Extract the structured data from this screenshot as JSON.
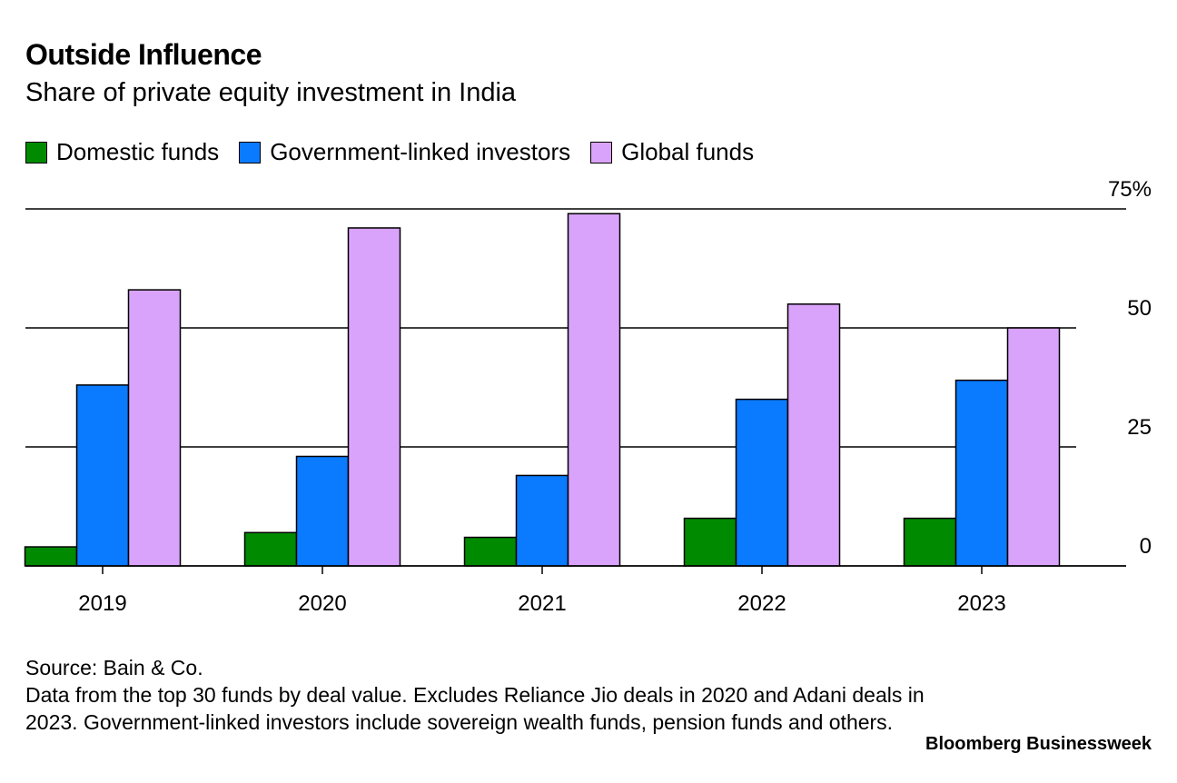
{
  "chart_data": {
    "type": "bar",
    "title": "Outside Influence",
    "subtitle": "Share of private equity investment in India",
    "categories": [
      "2019",
      "2020",
      "2021",
      "2022",
      "2023"
    ],
    "series": [
      {
        "name": "Domestic funds",
        "color": "#008a00",
        "values": [
          4,
          7,
          6,
          10,
          10
        ]
      },
      {
        "name": "Government-linked investors",
        "color": "#0a7aff",
        "values": [
          38,
          23,
          19,
          35,
          39
        ]
      },
      {
        "name": "Global funds",
        "color": "#d9a3fb",
        "values": [
          58,
          71,
          74,
          55,
          50
        ]
      }
    ],
    "ylim": [
      0,
      75
    ],
    "yticks": [
      {
        "value": 0,
        "label": "0"
      },
      {
        "value": 25,
        "label": "25"
      },
      {
        "value": 50,
        "label": "50"
      },
      {
        "value": 75,
        "label": "75%"
      }
    ],
    "grid": true,
    "legend_position": "top-left",
    "source": "Source: Bain & Co.",
    "note": "Data from the top 30 funds by deal value. Excludes Reliance Jio deals in 2020 and Adani deals in 2023. Government-linked investors include sovereign wealth funds, pension funds and others.",
    "brand": "Bloomberg Businessweek"
  }
}
